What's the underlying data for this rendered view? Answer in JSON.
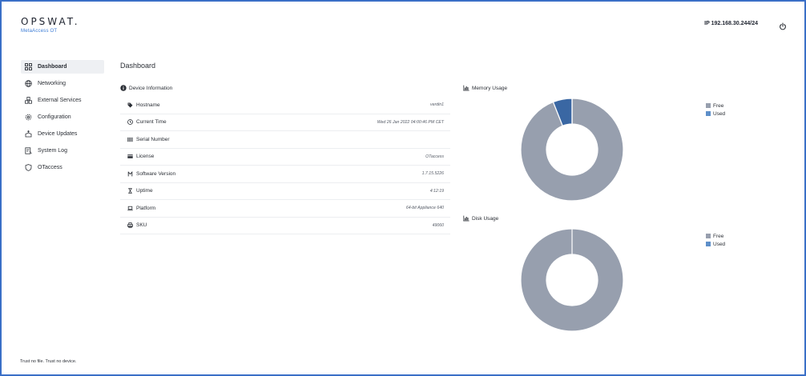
{
  "header": {
    "logo": "OPSWAT.",
    "product": "MetaAccess OT",
    "ip": "IP 192.168.30.244/24",
    "power_icon": "power-icon"
  },
  "sidebar": {
    "items": [
      {
        "label": "Dashboard",
        "icon": "grid-icon",
        "active": true
      },
      {
        "label": "Networking",
        "icon": "globe-icon",
        "active": false
      },
      {
        "label": "External Services",
        "icon": "cubes-icon",
        "active": false
      },
      {
        "label": "Configuration",
        "icon": "gear-icon",
        "active": false
      },
      {
        "label": "Device Updates",
        "icon": "box-upload-icon",
        "active": false
      },
      {
        "label": "System Log",
        "icon": "log-icon",
        "active": false
      },
      {
        "label": "OTaccess",
        "icon": "shield-icon",
        "active": false
      }
    ]
  },
  "footer": {
    "tagline": "Trust no file. Trust no device."
  },
  "main": {
    "title": "Dashboard",
    "device_info": {
      "heading": "Device Information",
      "rows": [
        {
          "label": "Hostname",
          "value": "verdin1",
          "icon": "tag-icon"
        },
        {
          "label": "Current Time",
          "value": "Wed 26 Jan 2022 04:00:46 PM CET",
          "icon": "clock-icon"
        },
        {
          "label": "Serial Number",
          "value": "",
          "icon": "barcode-icon"
        },
        {
          "label": "License",
          "value": "OTaccess",
          "icon": "license-card-icon"
        },
        {
          "label": "Software Version",
          "value": "1.7.15.5226",
          "icon": "code-branch-icon"
        },
        {
          "label": "Uptime",
          "value": "4:12:19",
          "icon": "hourglass-icon"
        },
        {
          "label": "Platform",
          "value": "64-bit Appliance 640",
          "icon": "laptop-icon"
        },
        {
          "label": "SKU",
          "value": "49060",
          "icon": "printer-icon"
        }
      ]
    },
    "memory": {
      "heading": "Memory Usage"
    },
    "disk": {
      "heading": "Disk Usage"
    },
    "legend": {
      "free": "Free",
      "used": "Used"
    },
    "colors": {
      "free": "#979fae",
      "used": "#3a67a3",
      "legend_used": "#5e8fc9",
      "accent": "#3a7bd5"
    }
  },
  "chart_data": [
    {
      "type": "pie",
      "title": "Memory Usage",
      "categories": [
        "Free",
        "Used"
      ],
      "values": [
        94,
        6
      ]
    },
    {
      "type": "pie",
      "title": "Disk Usage",
      "categories": [
        "Free",
        "Used"
      ],
      "values": [
        100,
        0
      ]
    }
  ]
}
